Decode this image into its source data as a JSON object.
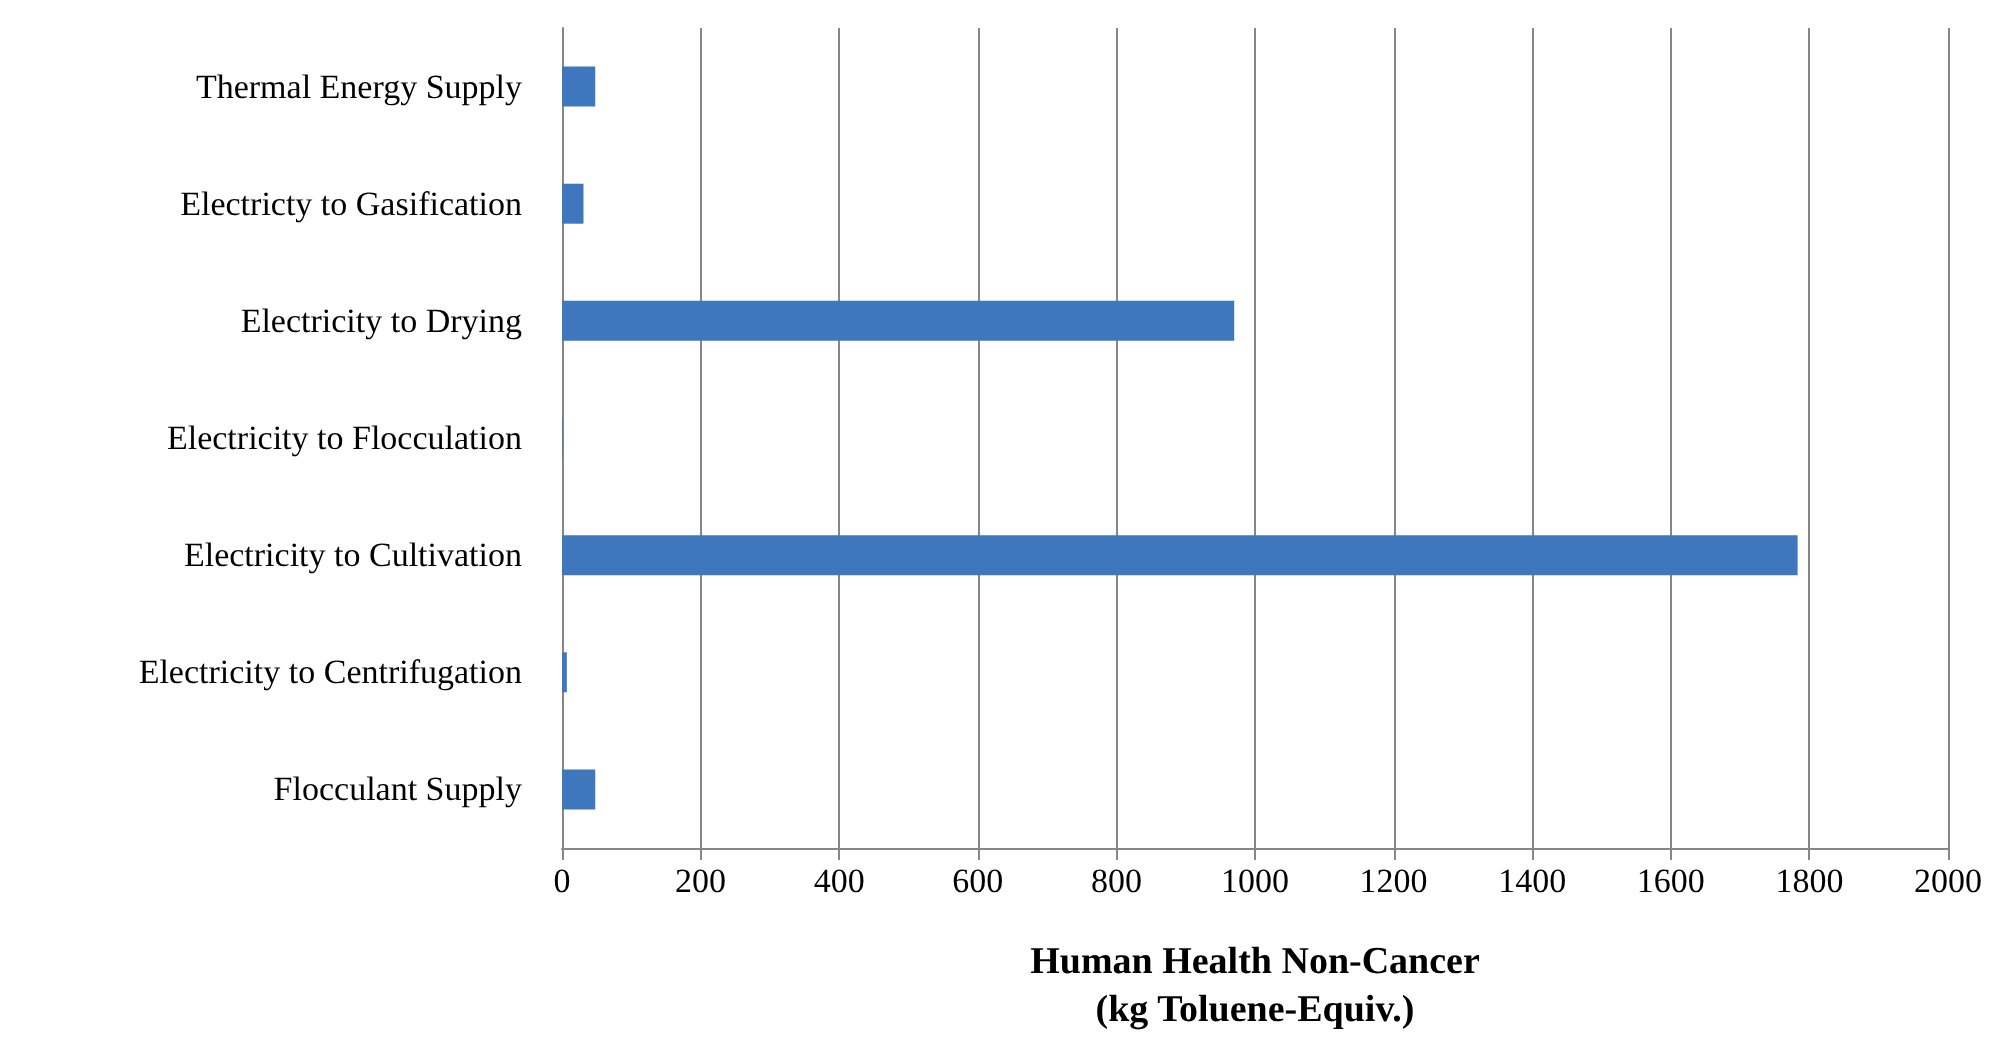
{
  "chart_data": {
    "type": "bar",
    "orientation": "horizontal",
    "xlabel": "Human Health Non-Cancer\n(kg Toluene-Equiv.)",
    "categories": [
      "Thermal Energy Supply",
      "Electricty to Gasification",
      "Electricity to Drying",
      "Electricity to Flocculation",
      "Electricity to Cultivation",
      "Electricity to Centrifugation",
      "Flocculant Supply"
    ],
    "values": [
      48,
      31,
      970,
      1,
      1783,
      7,
      48
    ],
    "color": "#3f77bf",
    "xlim": [
      0,
      2000
    ],
    "xticks": [
      0,
      200,
      400,
      600,
      800,
      1000,
      1200,
      1400,
      1600,
      1800,
      2000
    ],
    "grid": "x"
  }
}
